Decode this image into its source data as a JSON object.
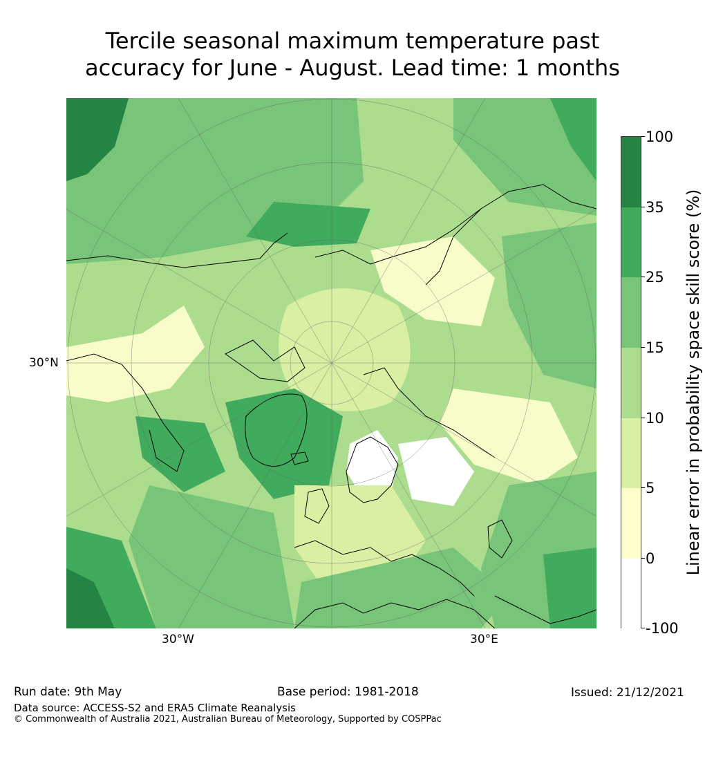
{
  "title_line1": "Tercile seasonal maximum temperature past",
  "title_line2": "accuracy for June - August. Lead time: 1 months",
  "map": {
    "lat_label": "30°N",
    "lon_labels": [
      "30°W",
      "30°E"
    ],
    "colors": {
      "ocean_low": "#d9efa3",
      "land_low": "#f7fcc9",
      "mid": "#acdc8e",
      "mid_high": "#78c478",
      "high": "#41ab5d",
      "very_high": "#238443",
      "negative": "#ffffff",
      "coast": "#000000",
      "grid": "#666666"
    }
  },
  "colorbar": {
    "label": "Linear error in probability space skill score (%)",
    "ticks": [
      "100",
      "35",
      "25",
      "15",
      "10",
      "5",
      "0",
      "-100"
    ],
    "colors": [
      "#238443",
      "#41ab5d",
      "#78c478",
      "#acdc8e",
      "#d9efa3",
      "#ffffcc",
      "#ffffff"
    ]
  },
  "footer": {
    "run_date": "Run date: 9th May",
    "base_period": "Base period: 1981-2018",
    "issued": "Issued: 21/12/2021",
    "data_source": "Data source: ACCESS-S2 and ERA5 Climate Reanalysis",
    "copyright": "© Commonwealth of Australia 2021, Australian Bureau of Meteorology, Supported by COSPPac"
  }
}
